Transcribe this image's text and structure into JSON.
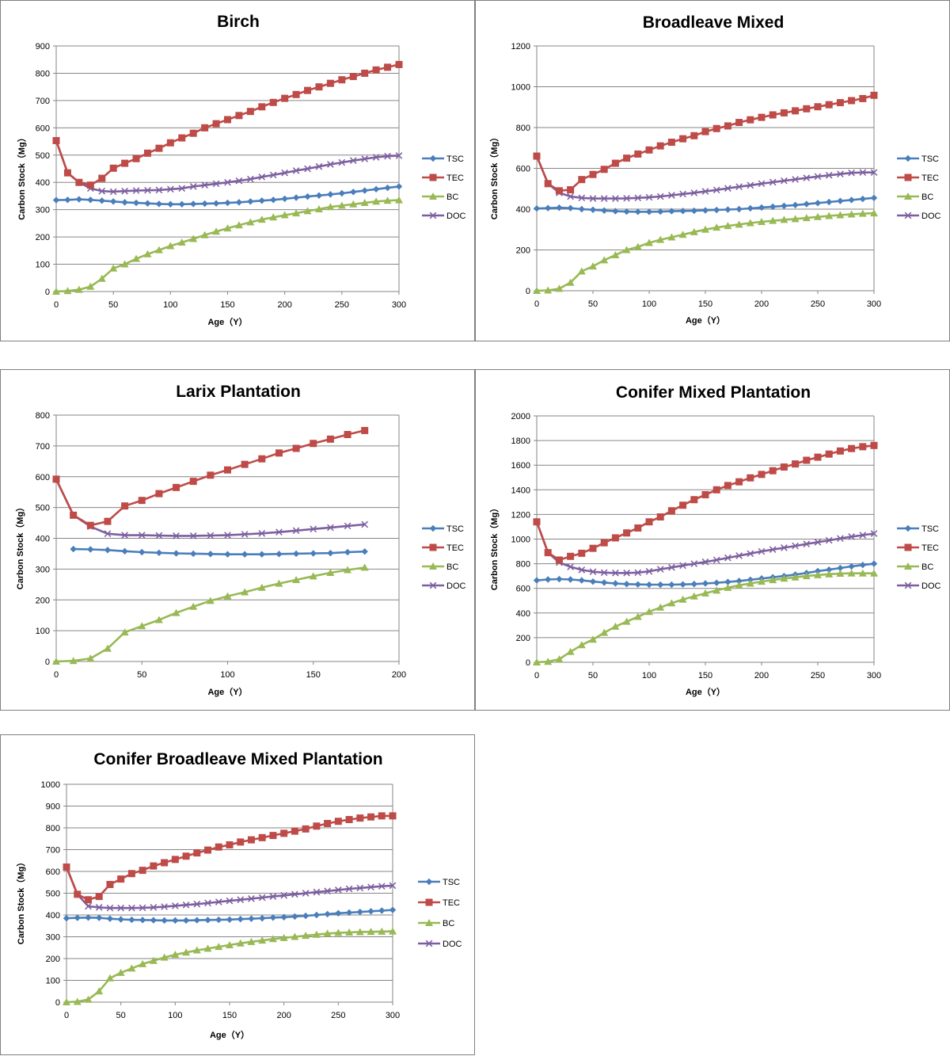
{
  "colors": {
    "TSC": "#4a7ebb",
    "TEC": "#be4b48",
    "BC": "#98b954",
    "DOC": "#7d5fa0",
    "grid": "#868686"
  },
  "legend": [
    "TSC",
    "TEC",
    "BC",
    "DOC"
  ],
  "chart_data": [
    {
      "type": "line",
      "title": "Birch",
      "xlabel": "Age（Y）",
      "ylabel": "Carbon Stock（Mg）",
      "xlim": [
        0,
        300
      ],
      "ylim": [
        0,
        900
      ],
      "xticks": [
        0,
        50,
        100,
        150,
        200,
        250,
        300
      ],
      "yticks": [
        0,
        100,
        200,
        300,
        400,
        500,
        600,
        700,
        800,
        900
      ],
      "x": [
        0,
        10,
        20,
        30,
        40,
        50,
        60,
        70,
        80,
        90,
        100,
        110,
        120,
        130,
        140,
        150,
        160,
        170,
        180,
        190,
        200,
        210,
        220,
        230,
        240,
        250,
        260,
        270,
        280,
        290,
        300
      ],
      "series": [
        {
          "name": "TSC",
          "values": [
            335,
            336,
            338,
            336,
            333,
            330,
            327,
            325,
            323,
            321,
            320,
            320,
            321,
            322,
            323,
            325,
            327,
            330,
            333,
            336,
            340,
            344,
            348,
            352,
            356,
            360,
            365,
            370,
            375,
            380,
            385
          ]
        },
        {
          "name": "TEC",
          "values": [
            553,
            435,
            400,
            390,
            415,
            452,
            470,
            487,
            507,
            525,
            545,
            563,
            580,
            600,
            615,
            630,
            645,
            660,
            677,
            693,
            708,
            722,
            737,
            750,
            763,
            776,
            788,
            800,
            812,
            822,
            832
          ]
        },
        {
          "name": "BC",
          "values": [
            0,
            2,
            7,
            18,
            47,
            85,
            100,
            120,
            137,
            152,
            167,
            180,
            193,
            207,
            220,
            232,
            243,
            254,
            264,
            272,
            280,
            287,
            295,
            302,
            310,
            315,
            320,
            325,
            330,
            333,
            335
          ]
        },
        {
          "name": "DOC",
          "values": [
            553,
            435,
            400,
            378,
            368,
            366,
            368,
            370,
            371,
            372,
            375,
            378,
            385,
            390,
            395,
            400,
            406,
            412,
            420,
            427,
            435,
            443,
            450,
            458,
            466,
            473,
            480,
            486,
            492,
            496,
            498
          ]
        }
      ]
    },
    {
      "type": "line",
      "title": "Broadleave Mixed",
      "xlabel": "Age（Y）",
      "ylabel": "Carbon Stock（Mg）",
      "xlim": [
        0,
        300
      ],
      "ylim": [
        0,
        1200
      ],
      "xticks": [
        0,
        50,
        100,
        150,
        200,
        250,
        300
      ],
      "yticks": [
        0,
        200,
        400,
        600,
        800,
        1000,
        1200
      ],
      "x": [
        0,
        10,
        20,
        30,
        40,
        50,
        60,
        70,
        80,
        90,
        100,
        110,
        120,
        130,
        140,
        150,
        160,
        170,
        180,
        190,
        200,
        210,
        220,
        230,
        240,
        250,
        260,
        270,
        280,
        290,
        300
      ],
      "series": [
        {
          "name": "TSC",
          "values": [
            403,
            405,
            407,
            405,
            400,
            397,
            393,
            390,
            388,
            387,
            387,
            388,
            390,
            391,
            392,
            394,
            396,
            398,
            400,
            404,
            408,
            412,
            416,
            420,
            425,
            430,
            435,
            440,
            445,
            450,
            455
          ]
        },
        {
          "name": "TEC",
          "values": [
            660,
            525,
            490,
            495,
            545,
            570,
            595,
            625,
            650,
            670,
            690,
            710,
            728,
            745,
            760,
            780,
            795,
            808,
            825,
            838,
            850,
            862,
            872,
            882,
            892,
            902,
            912,
            922,
            932,
            942,
            958
          ]
        },
        {
          "name": "BC",
          "values": [
            0,
            2,
            10,
            40,
            95,
            120,
            150,
            175,
            200,
            215,
            235,
            250,
            262,
            275,
            288,
            300,
            310,
            318,
            325,
            332,
            338,
            343,
            348,
            352,
            357,
            362,
            367,
            371,
            375,
            378,
            380
          ]
        },
        {
          "name": "DOC",
          "values": [
            660,
            525,
            480,
            462,
            455,
            452,
            452,
            452,
            453,
            455,
            458,
            462,
            468,
            474,
            480,
            487,
            494,
            502,
            510,
            517,
            525,
            532,
            539,
            546,
            553,
            560,
            566,
            572,
            578,
            580,
            580
          ]
        }
      ]
    },
    {
      "type": "line",
      "title": "Larix Plantation",
      "xlabel": "Age（Y）",
      "ylabel": "Carbon Stock（Mg）",
      "xlim": [
        0,
        200
      ],
      "ylim": [
        0,
        800
      ],
      "xticks": [
        0,
        50,
        100,
        150,
        200
      ],
      "yticks": [
        0,
        100,
        200,
        300,
        400,
        500,
        600,
        700,
        800
      ],
      "x": [
        0,
        10,
        20,
        30,
        40,
        50,
        60,
        70,
        80,
        90,
        100,
        110,
        120,
        130,
        140,
        150,
        160,
        170,
        180
      ],
      "series": [
        {
          "name": "TSC",
          "values": [
            null,
            365,
            364,
            362,
            358,
            355,
            353,
            351,
            350,
            349,
            348,
            348,
            348,
            349,
            350,
            351,
            352,
            355,
            357
          ]
        },
        {
          "name": "TEC",
          "values": [
            592,
            475,
            442,
            455,
            505,
            523,
            545,
            565,
            585,
            605,
            622,
            640,
            658,
            677,
            692,
            708,
            722,
            737,
            750
          ]
        },
        {
          "name": "BC",
          "values": [
            0,
            2,
            10,
            42,
            95,
            115,
            135,
            158,
            178,
            197,
            212,
            225,
            240,
            253,
            265,
            277,
            288,
            297,
            305
          ]
        },
        {
          "name": "DOC",
          "values": [
            592,
            475,
            438,
            415,
            410,
            410,
            409,
            408,
            408,
            409,
            410,
            413,
            416,
            420,
            425,
            430,
            435,
            440,
            445
          ]
        }
      ]
    },
    {
      "type": "line",
      "title": "Conifer Mixed Plantation",
      "xlabel": "Age（Y）",
      "ylabel": "Carbon Stock（Mg）",
      "xlim": [
        0,
        300
      ],
      "ylim": [
        0,
        2000
      ],
      "xticks": [
        0,
        50,
        100,
        150,
        200,
        250,
        300
      ],
      "yticks": [
        0,
        200,
        400,
        600,
        800,
        1000,
        1200,
        1400,
        1600,
        1800,
        2000
      ],
      "x": [
        0,
        10,
        20,
        30,
        40,
        50,
        60,
        70,
        80,
        90,
        100,
        110,
        120,
        130,
        140,
        150,
        160,
        170,
        180,
        190,
        200,
        210,
        220,
        230,
        240,
        250,
        260,
        270,
        280,
        290,
        300
      ],
      "series": [
        {
          "name": "TSC",
          "values": [
            665,
            672,
            675,
            672,
            665,
            655,
            647,
            640,
            635,
            632,
            630,
            630,
            630,
            632,
            635,
            640,
            645,
            652,
            660,
            670,
            680,
            690,
            700,
            712,
            725,
            740,
            752,
            765,
            778,
            790,
            800
          ]
        },
        {
          "name": "TEC",
          "values": [
            1140,
            890,
            830,
            860,
            885,
            925,
            970,
            1010,
            1050,
            1090,
            1140,
            1180,
            1230,
            1275,
            1320,
            1360,
            1400,
            1435,
            1465,
            1497,
            1525,
            1555,
            1585,
            1610,
            1640,
            1665,
            1690,
            1715,
            1735,
            1750,
            1760
          ]
        },
        {
          "name": "BC",
          "values": [
            0,
            5,
            25,
            85,
            140,
            185,
            240,
            290,
            330,
            370,
            410,
            445,
            480,
            510,
            535,
            560,
            583,
            605,
            625,
            640,
            655,
            668,
            680,
            690,
            700,
            708,
            715,
            720,
            722,
            722,
            722
          ]
        },
        {
          "name": "DOC",
          "values": [
            1140,
            890,
            810,
            775,
            750,
            735,
            728,
            725,
            725,
            728,
            738,
            755,
            770,
            785,
            800,
            815,
            830,
            848,
            865,
            882,
            900,
            915,
            930,
            945,
            960,
            975,
            990,
            1005,
            1020,
            1032,
            1045
          ]
        }
      ]
    },
    {
      "type": "line",
      "title": "Conifer Broadleave Mixed Plantation",
      "xlabel": "Age（Y）",
      "ylabel": "Carbon Stock（Mg）",
      "xlim": [
        0,
        300
      ],
      "ylim": [
        0,
        1000
      ],
      "xticks": [
        0,
        50,
        100,
        150,
        200,
        250,
        300
      ],
      "yticks": [
        0,
        100,
        200,
        300,
        400,
        500,
        600,
        700,
        800,
        900,
        1000
      ],
      "x": [
        0,
        10,
        20,
        30,
        40,
        50,
        60,
        70,
        80,
        90,
        100,
        110,
        120,
        130,
        140,
        150,
        160,
        170,
        180,
        190,
        200,
        210,
        220,
        230,
        240,
        250,
        260,
        270,
        280,
        290,
        300
      ],
      "series": [
        {
          "name": "TSC",
          "values": [
            385,
            387,
            388,
            387,
            383,
            380,
            378,
            377,
            376,
            375,
            375,
            375,
            376,
            377,
            378,
            379,
            381,
            383,
            385,
            388,
            390,
            393,
            396,
            400,
            404,
            408,
            411,
            414,
            417,
            420,
            423
          ]
        },
        {
          "name": "TEC",
          "values": [
            620,
            495,
            470,
            485,
            540,
            565,
            590,
            605,
            625,
            640,
            655,
            670,
            685,
            698,
            712,
            722,
            735,
            745,
            755,
            765,
            775,
            785,
            795,
            808,
            820,
            830,
            838,
            845,
            850,
            855,
            855
          ]
        },
        {
          "name": "BC",
          "values": [
            0,
            2,
            12,
            50,
            110,
            135,
            155,
            175,
            190,
            205,
            218,
            228,
            238,
            246,
            254,
            262,
            270,
            277,
            283,
            290,
            295,
            300,
            305,
            310,
            315,
            318,
            320,
            322,
            323,
            324,
            325
          ]
        },
        {
          "name": "DOC",
          "values": [
            620,
            495,
            440,
            435,
            432,
            432,
            432,
            433,
            435,
            438,
            442,
            446,
            450,
            455,
            460,
            465,
            470,
            475,
            480,
            485,
            490,
            495,
            500,
            505,
            510,
            515,
            520,
            524,
            528,
            532,
            535
          ]
        }
      ]
    }
  ]
}
